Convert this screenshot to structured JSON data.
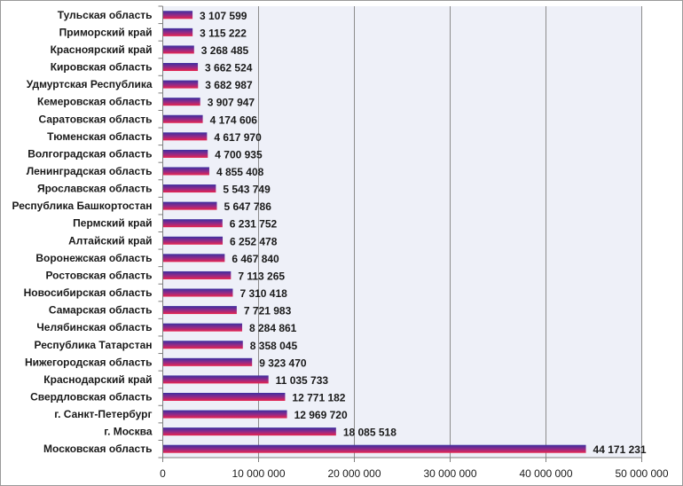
{
  "chart_data": {
    "type": "bar",
    "orientation": "horizontal",
    "categories": [
      "Тульская область",
      "Приморский край",
      "Красноярский край",
      "Кировская область",
      "Удмуртская Республика",
      "Кемеровская область",
      "Саратовская область",
      "Тюменская область",
      "Волгоградская область",
      "Ленинградская область",
      "Ярославская область",
      "Республика Башкортостан",
      "Пермский край",
      "Алтайский край",
      "Воронежская область",
      "Ростовская область",
      "Новосибирская область",
      "Самарская область",
      "Челябинская область",
      "Республика Татарстан",
      "Нижегородская область",
      "Краснодарский край",
      "Свердловская область",
      "г. Санкт-Петербург",
      "г. Москва",
      "Московская область"
    ],
    "values": [
      3107599,
      3115222,
      3268485,
      3662524,
      3682987,
      3907947,
      4174606,
      4617970,
      4700935,
      4855408,
      5543749,
      5647786,
      6231752,
      6252478,
      6467840,
      7113265,
      7310418,
      7721983,
      8284861,
      8358045,
      9323470,
      11035733,
      12771182,
      12969720,
      18085518,
      44171231
    ],
    "value_labels": [
      "3 107 599",
      "3 115 222",
      "3 268 485",
      "3 662 524",
      "3 682 987",
      "3 907 947",
      "4 174 606",
      "4 617 970",
      "4 700 935",
      "4 855 408",
      "5 543 749",
      "5 647 786",
      "6 231 752",
      "6 252 478",
      "6 467 840",
      "7 113 265",
      "7 310 418",
      "7 721 983",
      "8 284 861",
      "8 358 045",
      "9 323 470",
      "11 035 733",
      "12 771 182",
      "12 969 720",
      "18 085 518",
      "44 171 231"
    ],
    "xlim": [
      0,
      50000000
    ],
    "x_ticks": [
      0,
      10000000,
      20000000,
      30000000,
      40000000,
      50000000
    ],
    "x_tick_labels": [
      "0",
      "10 000 000",
      "20 000 000",
      "30 000 000",
      "40 000 000",
      "50 000 000"
    ],
    "title": "",
    "xlabel": "",
    "ylabel": "",
    "grid": "vertical",
    "legend": "none",
    "colors": {
      "bar_top": "#3b2fa0",
      "bar_middle": "#8e2a8a",
      "bar_bottom": "#e8244e",
      "plot_background": "#eef0f8",
      "gridline": "#8c8c8c",
      "axis": "#7f7f7f"
    }
  }
}
